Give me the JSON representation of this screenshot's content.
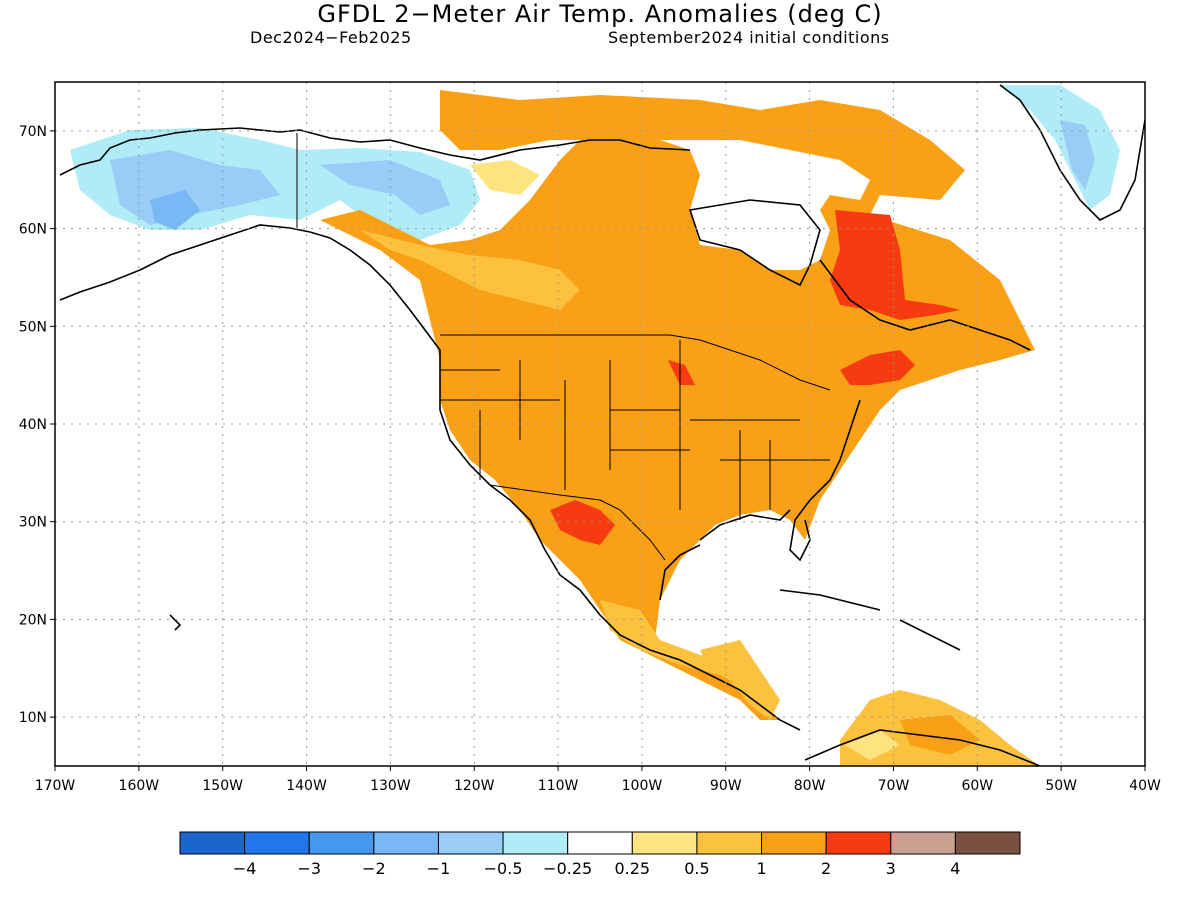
{
  "title": "GFDL 2−Meter Air Temp. Anomalies (deg C)",
  "subtitle_left": "Dec2024−Feb2025",
  "subtitle_right": "September2024 initial conditions",
  "lat_labels": [
    "70N",
    "60N",
    "50N",
    "40N",
    "30N",
    "20N",
    "10N"
  ],
  "lon_labels": [
    "170W",
    "160W",
    "150W",
    "140W",
    "130W",
    "120W",
    "110W",
    "100W",
    "90W",
    "80W",
    "70W",
    "60W",
    "50W",
    "40W"
  ],
  "colorbar": {
    "colors": [
      "#1a66cc",
      "#2277ee",
      "#4499ee",
      "#77b8f5",
      "#99ccf7",
      "#b0ecf8",
      "#ffffff",
      "#fde480",
      "#fcc23e",
      "#f9a015",
      "#f73a10",
      "#c8a090",
      "#7a5040"
    ],
    "labels": [
      "−4",
      "−3",
      "−2",
      "−1",
      "−0.5",
      "−0.25",
      "0.25",
      "0.5",
      "1",
      "2",
      "3",
      "4"
    ]
  },
  "map": {
    "lon_range": [
      -170,
      -40
    ],
    "lat_range": [
      5,
      75
    ],
    "anomaly_colors": {
      "cool_light": "#b0ecf8",
      "cool_mid": "#99ccf7",
      "cool_strong": "#77b8f5",
      "near_zero": "#ffffff",
      "warm_light": "#fde480",
      "warm_mid": "#fcc23e",
      "warm": "#f9a015",
      "hot": "#f73a10"
    }
  }
}
